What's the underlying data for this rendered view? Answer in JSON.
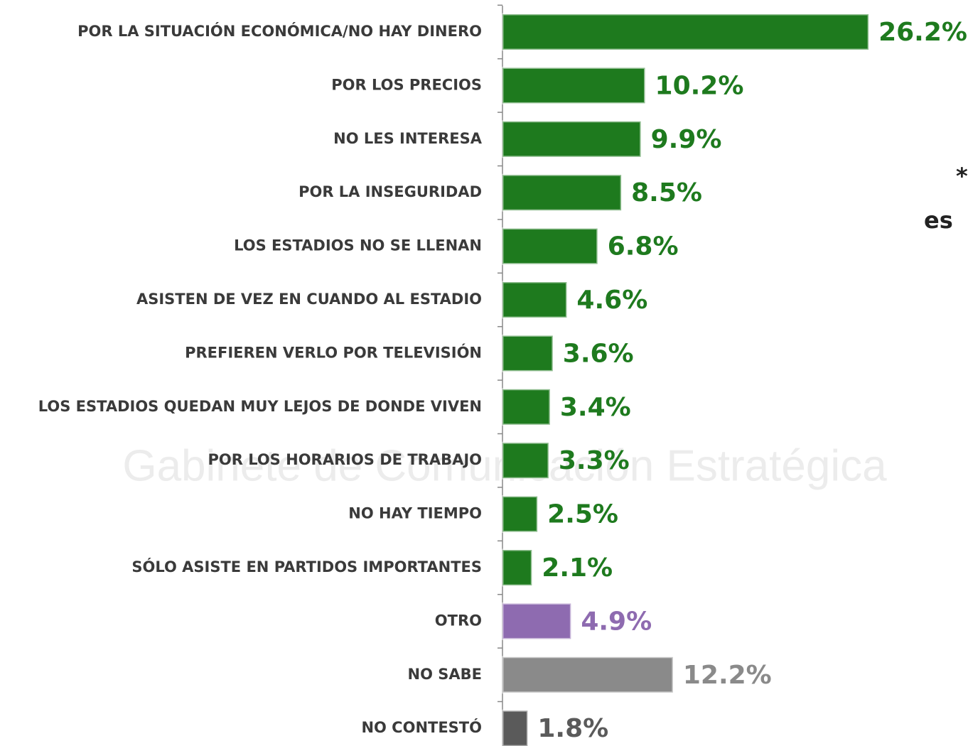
{
  "chart_data": {
    "type": "bar",
    "orientation": "horizontal",
    "categories": [
      "POR LA SITUACIÓN ECONÓMICA/NO HAY DINERO",
      "POR LOS PRECIOS",
      "NO LES INTERESA",
      "POR LA INSEGURIDAD",
      "LOS ESTADIOS NO SE LLENAN",
      "ASISTEN DE VEZ EN CUANDO AL ESTADIO",
      "PREFIEREN VERLO POR TELEVISIÓN",
      "LOS ESTADIOS QUEDAN MUY LEJOS DE DONDE VIVEN",
      "POR LOS HORARIOS DE TRABAJO",
      "NO HAY TIEMPO",
      "SÓLO ASISTE EN PARTIDOS IMPORTANTES",
      "OTRO",
      "NO SABE",
      "NO CONTESTÓ"
    ],
    "values": [
      26.2,
      10.2,
      9.9,
      8.5,
      6.8,
      4.6,
      3.6,
      3.4,
      3.3,
      2.5,
      2.1,
      4.9,
      12.2,
      1.8
    ],
    "value_labels": [
      "26.2%",
      "10.2%",
      "9.9%",
      "8.5%",
      "6.8%",
      "4.6%",
      "3.6%",
      "3.4%",
      "3.3%",
      "2.5%",
      "2.1%",
      "4.9%",
      "12.2%",
      "1.8%"
    ],
    "colors": [
      "#1e7a1e",
      "#1e7a1e",
      "#1e7a1e",
      "#1e7a1e",
      "#1e7a1e",
      "#1e7a1e",
      "#1e7a1e",
      "#1e7a1e",
      "#1e7a1e",
      "#1e7a1e",
      "#1e7a1e",
      "#8e6bb0",
      "#8a8a8a",
      "#5a5a5a"
    ],
    "annotations": [
      "*",
      "es"
    ],
    "watermark": "Gabinete de Comunicación Estratégica"
  }
}
